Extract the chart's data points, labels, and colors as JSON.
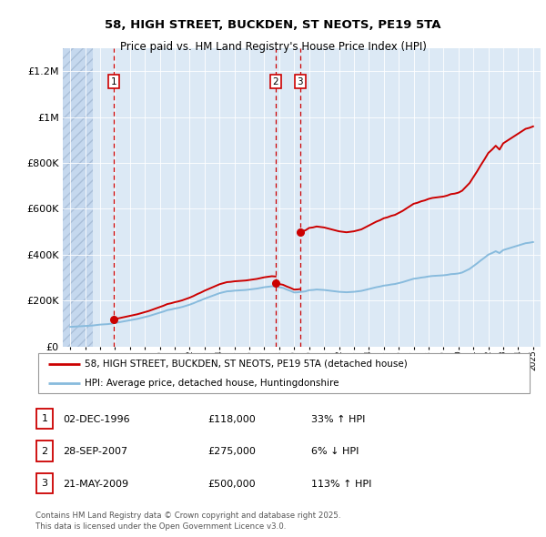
{
  "title": "58, HIGH STREET, BUCKDEN, ST NEOTS, PE19 5TA",
  "subtitle": "Price paid vs. HM Land Registry's House Price Index (HPI)",
  "ylabel_values": [
    "£0",
    "£200K",
    "£400K",
    "£600K",
    "£800K",
    "£1M",
    "£1.2M"
  ],
  "yticks": [
    0,
    200000,
    400000,
    600000,
    800000,
    1000000,
    1200000
  ],
  "ylim": [
    0,
    1300000
  ],
  "xlim_start": 1993.5,
  "xlim_end": 2025.5,
  "bg_color": "#dce9f5",
  "hatch_color": "#c5d8ee",
  "grid_color": "#ffffff",
  "sale_color": "#cc0000",
  "hpi_color": "#88bbdd",
  "sale_dates": [
    1996.92,
    2007.75,
    2009.39
  ],
  "sale_prices": [
    118000,
    275000,
    500000
  ],
  "legend_sale_label": "58, HIGH STREET, BUCKDEN, ST NEOTS, PE19 5TA (detached house)",
  "legend_hpi_label": "HPI: Average price, detached house, Huntingdonshire",
  "table_data": [
    [
      "1",
      "02-DEC-1996",
      "£118,000",
      "33% ↑ HPI"
    ],
    [
      "2",
      "28-SEP-2007",
      "£275,000",
      "6% ↓ HPI"
    ],
    [
      "3",
      "21-MAY-2009",
      "£500,000",
      "113% ↑ HPI"
    ]
  ],
  "footer": "Contains HM Land Registry data © Crown copyright and database right 2025.\nThis data is licensed under the Open Government Licence v3.0.",
  "hpi_x": [
    1994,
    1994.25,
    1994.5,
    1994.75,
    1995,
    1995.25,
    1995.5,
    1995.75,
    1996,
    1996.25,
    1996.5,
    1996.75,
    1997,
    1997.25,
    1997.5,
    1997.75,
    1998,
    1998.25,
    1998.5,
    1998.75,
    1999,
    1999.25,
    1999.5,
    1999.75,
    2000,
    2000.25,
    2000.5,
    2000.75,
    2001,
    2001.25,
    2001.5,
    2001.75,
    2002,
    2002.25,
    2002.5,
    2002.75,
    2003,
    2003.25,
    2003.5,
    2003.75,
    2004,
    2004.25,
    2004.5,
    2004.75,
    2005,
    2005.25,
    2005.5,
    2005.75,
    2006,
    2006.25,
    2006.5,
    2006.75,
    2007,
    2007.25,
    2007.5,
    2007.75,
    2008,
    2008.25,
    2008.5,
    2008.75,
    2009,
    2009.25,
    2009.5,
    2009.75,
    2010,
    2010.25,
    2010.5,
    2010.75,
    2011,
    2011.25,
    2011.5,
    2011.75,
    2012,
    2012.25,
    2012.5,
    2012.75,
    2013,
    2013.25,
    2013.5,
    2013.75,
    2014,
    2014.25,
    2014.5,
    2014.75,
    2015,
    2015.25,
    2015.5,
    2015.75,
    2016,
    2016.25,
    2016.5,
    2016.75,
    2017,
    2017.25,
    2017.5,
    2017.75,
    2018,
    2018.25,
    2018.5,
    2018.75,
    2019,
    2019.25,
    2019.5,
    2019.75,
    2020,
    2020.25,
    2020.5,
    2020.75,
    2021,
    2021.25,
    2021.5,
    2021.75,
    2022,
    2022.25,
    2022.5,
    2022.75,
    2023,
    2023.25,
    2023.5,
    2023.75,
    2024,
    2024.25,
    2024.5,
    2024.75,
    2025
  ],
  "hpi_y": [
    85000,
    86000,
    87000,
    88000,
    89000,
    90000,
    91000,
    93000,
    95000,
    96000,
    97000,
    99000,
    102000,
    105000,
    108000,
    111000,
    114000,
    117000,
    120000,
    124000,
    128000,
    132000,
    137000,
    142000,
    147000,
    152000,
    158000,
    161000,
    165000,
    168000,
    172000,
    177000,
    182000,
    188000,
    195000,
    201000,
    208000,
    214000,
    220000,
    226000,
    232000,
    236000,
    240000,
    241000,
    243000,
    244000,
    245000,
    246000,
    248000,
    250000,
    252000,
    255000,
    258000,
    260000,
    262000,
    261000,
    258000,
    255000,
    248000,
    242000,
    235000,
    236000,
    238000,
    240000,
    245000,
    246000,
    248000,
    247000,
    246000,
    244000,
    242000,
    240000,
    238000,
    237000,
    236000,
    237000,
    238000,
    240000,
    242000,
    246000,
    250000,
    254000,
    258000,
    261000,
    265000,
    267000,
    270000,
    272000,
    276000,
    280000,
    285000,
    290000,
    295000,
    297000,
    300000,
    302000,
    305000,
    307000,
    308000,
    309000,
    310000,
    312000,
    315000,
    316000,
    318000,
    322000,
    330000,
    338000,
    350000,
    362000,
    375000,
    387000,
    400000,
    407000,
    415000,
    407000,
    420000,
    425000,
    430000,
    435000,
    440000,
    445000,
    450000,
    452000,
    455000
  ],
  "red_x1": [
    1996.92,
    1997,
    1997.25,
    1997.5,
    1997.75,
    1998,
    1998.25,
    1998.5,
    1998.75,
    1999,
    1999.25,
    1999.5,
    1999.75,
    2000,
    2000.25,
    2000.5,
    2000.75,
    2001,
    2001.25,
    2001.5,
    2001.75,
    2002,
    2002.25,
    2002.5,
    2002.75,
    2003,
    2003.25,
    2003.5,
    2003.75,
    2004,
    2004.25,
    2004.5,
    2004.75,
    2005,
    2005.25,
    2005.5,
    2005.75,
    2006,
    2006.25,
    2006.5,
    2006.75,
    2007,
    2007.25,
    2007.5,
    2007.75
  ],
  "red_x2": [
    2007.75,
    2008,
    2008.25,
    2008.5,
    2008.75,
    2009,
    2009.25,
    2009.39
  ],
  "red_x3": [
    2009.39,
    2009.5,
    2009.75,
    2010,
    2010.25,
    2010.5,
    2010.75,
    2011,
    2011.25,
    2011.5,
    2011.75,
    2012,
    2012.25,
    2012.5,
    2012.75,
    2013,
    2013.25,
    2013.5,
    2013.75,
    2014,
    2014.25,
    2014.5,
    2014.75,
    2015,
    2015.25,
    2015.5,
    2015.75,
    2016,
    2016.25,
    2016.5,
    2016.75,
    2017,
    2017.25,
    2017.5,
    2017.75,
    2018,
    2018.25,
    2018.5,
    2018.75,
    2019,
    2019.25,
    2019.5,
    2019.75,
    2020,
    2020.25,
    2020.5,
    2020.75,
    2021,
    2021.25,
    2021.5,
    2021.75,
    2022,
    2022.25,
    2022.5,
    2022.75,
    2023,
    2023.25,
    2023.5,
    2023.75,
    2024,
    2024.25,
    2024.5,
    2024.75,
    2025
  ]
}
